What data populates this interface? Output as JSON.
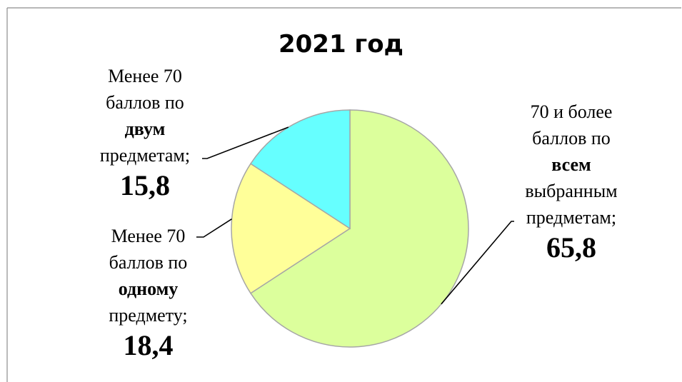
{
  "chart_data": {
    "type": "pie",
    "title": "2021 год",
    "unit": "%",
    "slices": [
      {
        "key": "all",
        "value": 65.8,
        "value_label": "65,8",
        "label_lines": [
          "70 и более",
          "баллов по",
          "всем",
          "выбранным",
          "предметам;"
        ],
        "bold_line": 2,
        "color": "#dcff9c"
      },
      {
        "key": "one",
        "value": 18.4,
        "value_label": "18,4",
        "label_lines": [
          "Менее 70",
          "баллов по",
          "одному",
          "предмету;"
        ],
        "bold_line": 2,
        "color": "#ffff99"
      },
      {
        "key": "two",
        "value": 15.8,
        "value_label": "15,8",
        "label_lines": [
          "Менее 70",
          "баллов по",
          "двум",
          "предметам;"
        ],
        "bold_line": 2,
        "color": "#66ffff"
      }
    ],
    "legend": "none",
    "slice_border_color": "#a6a6a6",
    "frame_color": "#808080"
  }
}
